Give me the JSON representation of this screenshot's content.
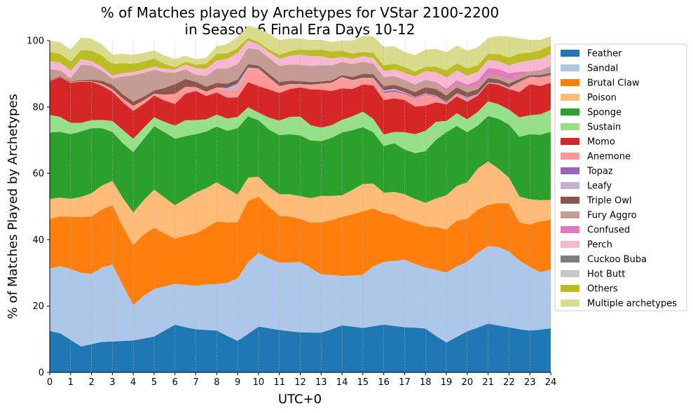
{
  "chart_data": {
    "type": "area",
    "stacked": true,
    "title": [
      "% of Matches played by Archetypes for VStar 2100-2200",
      "in Season 6 Final Era Days 10-12"
    ],
    "xlabel": "UTC+0",
    "ylabel": "% of Matches Played by Archetypes",
    "xlim": [
      0,
      24
    ],
    "ylim": [
      0,
      100
    ],
    "xticks": [
      "0",
      "1",
      "2",
      "3",
      "4",
      "5",
      "6",
      "7",
      "8",
      "9",
      "10",
      "11",
      "12",
      "13",
      "14",
      "15",
      "16",
      "17",
      "18",
      "19",
      "20",
      "21",
      "22",
      "23",
      "24"
    ],
    "yticks": [
      "0",
      "20",
      "40",
      "60",
      "80",
      "100"
    ],
    "grid": "vertical dotted",
    "legend_position": "right",
    "x": [
      0,
      0.5,
      1,
      1.5,
      2,
      2.5,
      3,
      3.5,
      4,
      4.5,
      5,
      5.5,
      6,
      6.5,
      7,
      7.5,
      8,
      8.5,
      9,
      9.5,
      10,
      10.5,
      11,
      11.5,
      12,
      12.5,
      13,
      13.5,
      14,
      14.5,
      15,
      15.5,
      16,
      16.5,
      17,
      17.5,
      18,
      18.5,
      19,
      19.5,
      20,
      20.5,
      21,
      21.5,
      22,
      22.5,
      23,
      23.5,
      24
    ],
    "series": [
      {
        "name": "Feather",
        "color": "#1f77b4",
        "values": [
          12.5,
          11.8,
          9.8,
          7.8,
          8.5,
          9.2,
          9.3,
          9.5,
          9.6,
          10.2,
          10.8,
          12.6,
          14.4,
          13.6,
          13,
          12.8,
          12.6,
          11,
          9.5,
          11.6,
          13.8,
          13.3,
          12.8,
          12.4,
          12.1,
          12,
          12,
          13,
          14.2,
          13.8,
          13.4,
          13.9,
          14.4,
          14,
          13.6,
          13.5,
          13.2,
          11,
          9,
          10.7,
          12.4,
          13.5,
          14.7,
          14.1,
          13.6,
          13,
          12.6,
          12.9,
          13.3
        ]
      },
      {
        "name": "Sandal",
        "color": "#aec7e8",
        "values": [
          18.8,
          20.2,
          21.4,
          22.2,
          21.2,
          22.4,
          23.2,
          16.8,
          10.7,
          12.9,
          14.3,
          13.3,
          12.3,
          12.8,
          13.1,
          13.7,
          14,
          16,
          18.8,
          21.6,
          22.2,
          21,
          20.3,
          20.7,
          21.2,
          19.5,
          17.5,
          16.4,
          14.9,
          15.4,
          16,
          18.1,
          18.9,
          19.6,
          20.3,
          19.2,
          18.4,
          19.9,
          21.1,
          21.2,
          20.9,
          22.5,
          23.4,
          23.6,
          22.9,
          20.7,
          19.2,
          17.3,
          17.7
        ]
      },
      {
        "name": "Brutal Claw",
        "color": "#ff7f0e",
        "values": [
          15,
          15,
          15.8,
          16.8,
          17.3,
          17.5,
          17.9,
          17.7,
          18.1,
          18.5,
          18.5,
          16,
          13.6,
          14.8,
          15.8,
          17.1,
          18.9,
          18.2,
          17,
          18.4,
          17,
          15.6,
          14.1,
          13.9,
          13,
          13.6,
          15.7,
          16.5,
          17.8,
          18.4,
          19.2,
          17.4,
          14.8,
          13.9,
          12,
          12.5,
          12.4,
          12.9,
          13,
          13.8,
          13,
          13,
          12.4,
          13.3,
          14.4,
          11.5,
          12.8,
          15.3,
          15
        ]
      },
      {
        "name": "Poison",
        "color": "#ffbb78",
        "values": [
          6,
          5.7,
          5.3,
          6.1,
          7,
          7.2,
          7.3,
          8.6,
          9.8,
          10.3,
          11.5,
          10.8,
          10.1,
          11.1,
          12.3,
          11.9,
          11.8,
          10.2,
          8.3,
          7.1,
          6,
          6,
          6.5,
          6.7,
          6.8,
          7.4,
          8,
          7.3,
          6.5,
          7.4,
          8.2,
          7.5,
          6.1,
          6.9,
          7.8,
          7.1,
          7.1,
          8.6,
          10.3,
          10.5,
          11,
          12.4,
          13.1,
          10.4,
          7.8,
          7.8,
          7.6,
          6.4,
          6
        ]
      },
      {
        "name": "Sponge",
        "color": "#2ca02c",
        "values": [
          20,
          19.8,
          19.5,
          19.7,
          19.6,
          17.3,
          14.8,
          16.5,
          18.2,
          18.4,
          19.1,
          19.7,
          20,
          18.9,
          17.6,
          17.1,
          16.8,
          17.4,
          20,
          18.5,
          17,
          17.3,
          17.8,
          18.1,
          18.3,
          17.4,
          16.5,
          17.5,
          18.9,
          18,
          17.1,
          15.5,
          14,
          14.7,
          13.5,
          13.8,
          15.6,
          17.7,
          19,
          18.1,
          15.1,
          13,
          13.7,
          15,
          16,
          18,
          19.6,
          19.7,
          20.5
        ]
      },
      {
        "name": "Sustain",
        "color": "#98df8a",
        "values": [
          5.3,
          4.5,
          3.4,
          2.6,
          2.4,
          2.5,
          3.3,
          4,
          4,
          3.4,
          2.7,
          3.1,
          4,
          4.8,
          4.2,
          3.7,
          3.6,
          3.7,
          3.4,
          2.7,
          2.3,
          3.6,
          4.4,
          5.2,
          5.7,
          4.6,
          4.1,
          3.8,
          3.8,
          4.2,
          4.7,
          4,
          3.5,
          3.4,
          5.2,
          5.7,
          6.1,
          5.4,
          3.4,
          3.8,
          3.9,
          4.1,
          4.4,
          4.4,
          4.5,
          5.9,
          5.7,
          6.2,
          6.6
        ]
      },
      {
        "name": "Momo",
        "color": "#d62728",
        "values": [
          10.2,
          12,
          12.1,
          12.4,
          11.6,
          10.3,
          8.8,
          8.3,
          8.4,
          7.2,
          6.5,
          6.4,
          6.5,
          8,
          8.8,
          7,
          6.7,
          6.3,
          5.9,
          7.6,
          8,
          8.5,
          8.3,
          8.4,
          8.8,
          10.8,
          11.4,
          10.3,
          9.5,
          8.2,
          8.2,
          10.1,
          10.4,
          10.1,
          9.7,
          8.3,
          7.6,
          5.9,
          5,
          5.1,
          5.3,
          4.9,
          5.4,
          5.9,
          6.2,
          7.6,
          9.4,
          8.5,
          8.2
        ]
      },
      {
        "name": "Anemone",
        "color": "#ff9896",
        "values": [
          0.1,
          0.1,
          0.2,
          0.2,
          0.1,
          0.6,
          0.8,
          1.1,
          1.5,
          1.1,
          0.6,
          1.8,
          3,
          2.1,
          1.2,
          1.3,
          1.5,
          1.9,
          2.6,
          3.7,
          5.1,
          3.5,
          2,
          1.4,
          0.9,
          1.3,
          1.7,
          2.4,
          3.2,
          2.5,
          1.8,
          1.9,
          2.1,
          2,
          1.8,
          2.5,
          3.3,
          1.6,
          0.3,
          0.6,
          0.9,
          0.3,
          0.1,
          0.2,
          0.3,
          2.9,
          2,
          2.5,
          2.1
        ]
      },
      {
        "name": "Topaz",
        "color": "#9467bd",
        "values": [
          0,
          0,
          0,
          0,
          0,
          0,
          0,
          0,
          0,
          0,
          0,
          0,
          0,
          0,
          0,
          0,
          0,
          0,
          0,
          0,
          0,
          0,
          0,
          0,
          0,
          0,
          0,
          0,
          0,
          0,
          0,
          0,
          0.4,
          0.5,
          0.3,
          0.2,
          0.2,
          0.2,
          0.2,
          0.2,
          0.2,
          0.1,
          0.1,
          0.1,
          0.1,
          0.1,
          0.1,
          0.1,
          0.1
        ]
      },
      {
        "name": "Leafy",
        "color": "#c5b0d5",
        "values": [
          0,
          0,
          0,
          0,
          0,
          0,
          0,
          0,
          0,
          0,
          0,
          0,
          0,
          0,
          0,
          0,
          0,
          1,
          1.6,
          0.7,
          0.2,
          0.1,
          0.1,
          0.1,
          0.1,
          0.1,
          0.1,
          0.1,
          0.2,
          0.2,
          0.2,
          0.3,
          0.4,
          0.4,
          0.3,
          0.2,
          0.2,
          0.2,
          0.2,
          0.2,
          0.2,
          0.1,
          0.1,
          0.1,
          0.1,
          0.1,
          0.1,
          0.1,
          0.1
        ]
      },
      {
        "name": "Triple Owl",
        "color": "#8c564b",
        "values": [
          0.2,
          0.2,
          0.2,
          0.3,
          0.5,
          0.9,
          1.3,
          1.3,
          1.3,
          1.1,
          1,
          2,
          3,
          2.3,
          1.6,
          1.5,
          1.4,
          1.3,
          1.2,
          1,
          0.9,
          1.1,
          1.2,
          1,
          0.9,
          0.8,
          0.7,
          0.7,
          0.6,
          0.9,
          1.2,
          1.2,
          1.2,
          1.2,
          1.2,
          1.5,
          1.9,
          2,
          2,
          1.7,
          1.5,
          1.4,
          1.3,
          1.2,
          1.1,
          0.8,
          0.5,
          0.6,
          0.7
        ]
      },
      {
        "name": "Fury Aggro",
        "color": "#c49c94",
        "values": [
          3.3,
          1.7,
          1,
          4.6,
          4.3,
          3,
          1.8,
          5.4,
          7.9,
          7.2,
          6.2,
          4.8,
          3.4,
          2.9,
          2.1,
          3.2,
          4.3,
          4.6,
          4.6,
          4.8,
          4.8,
          4.8,
          4.9,
          4.9,
          4.9,
          4.9,
          4.9,
          4.5,
          4,
          3.9,
          3.6,
          3.2,
          2.8,
          2.6,
          2.4,
          2.3,
          2.2,
          1.7,
          1.2,
          1.3,
          1.4,
          1.3,
          1.1,
          1.2,
          1.3,
          1.2,
          0.9,
          1.3,
          1.9
        ]
      },
      {
        "name": "Confused",
        "color": "#e377c2",
        "values": [
          0,
          0,
          0,
          0,
          0,
          0,
          0,
          0,
          0,
          0,
          0,
          0,
          0,
          0,
          0,
          0,
          0,
          0,
          0,
          0,
          0,
          0,
          0,
          0,
          0,
          0,
          0,
          0,
          0,
          0,
          0,
          0,
          0,
          0,
          0,
          0,
          0,
          0.4,
          0.8,
          0.8,
          0.9,
          1.3,
          1.9,
          1.9,
          1.9,
          1,
          0.2,
          0.2,
          0.2
        ]
      },
      {
        "name": "Perch",
        "color": "#f7b6d2",
        "values": [
          2.4,
          2.4,
          2.2,
          1.7,
          1.3,
          1.2,
          1,
          1,
          1,
          1,
          1,
          1,
          1,
          1.5,
          2,
          2.2,
          2.4,
          2.9,
          3.4,
          2.3,
          1.6,
          1.8,
          2.1,
          2.6,
          3.1,
          2.9,
          2.7,
          2.1,
          1.5,
          1.6,
          1.7,
          1.7,
          1.8,
          2,
          2.2,
          2.4,
          2.6,
          3,
          3.4,
          3,
          2.7,
          2.6,
          2.5,
          2.4,
          2.3,
          2.9,
          3.3,
          3.4,
          3.5
        ]
      },
      {
        "name": "Cuckoo Buba",
        "color": "#7f7f7f",
        "values": [
          0,
          0,
          0,
          0,
          0,
          0,
          0,
          0,
          0,
          0,
          0,
          0,
          0,
          0,
          0,
          0,
          0,
          0,
          0,
          0,
          0,
          0,
          0,
          0,
          0,
          0,
          0,
          0,
          0,
          0,
          0,
          0,
          0,
          0,
          0,
          0,
          0,
          0,
          0,
          0,
          0,
          0,
          0,
          0,
          0,
          0,
          0,
          0,
          0
        ]
      },
      {
        "name": "Hot Butt",
        "color": "#c7c7c7",
        "values": [
          0,
          0,
          0,
          0,
          0,
          0,
          0,
          0,
          0,
          0,
          0,
          0,
          0,
          0,
          0,
          0,
          0,
          0,
          0,
          0,
          0,
          0,
          0,
          0,
          0,
          0,
          0,
          0,
          0,
          0,
          0,
          0,
          0,
          0,
          0,
          0,
          0,
          0,
          0,
          0,
          0,
          0,
          0,
          0,
          0,
          0,
          0,
          0,
          0
        ]
      },
      {
        "name": "Others",
        "color": "#bcbd22",
        "values": [
          2.8,
          2.6,
          2.8,
          2.7,
          3.2,
          3.4,
          3.5,
          3,
          2.5,
          2.4,
          2.4,
          1.5,
          0.7,
          0.8,
          1.1,
          1.5,
          2,
          1.7,
          1.4,
          0.9,
          0.6,
          0.8,
          1.2,
          1.4,
          1.5,
          1.8,
          2,
          2.1,
          1.9,
          1.6,
          1.3,
          1.5,
          1.7,
          1.8,
          1.7,
          1.5,
          1.3,
          1.7,
          2.1,
          2.2,
          2.2,
          2.1,
          1.8,
          2.1,
          2.4,
          2.6,
          2.4,
          2.6,
          2.7
        ]
      },
      {
        "name": "Multiple archetypes",
        "color": "#dbdb8d",
        "values": [
          3.4,
          3.5,
          3.6,
          3.8,
          3.6,
          3.3,
          2.8,
          2.8,
          2.7,
          2.6,
          2.5,
          2.5,
          2.5,
          1.8,
          1.6,
          1.9,
          2.3,
          2.8,
          3.4,
          3.6,
          4.1,
          4.7,
          4.5,
          3.8,
          3.3,
          3.1,
          2.9,
          2.9,
          3.1,
          3.9,
          4.7,
          5,
          5.6,
          5.2,
          4.6,
          4.9,
          5.2,
          5.3,
          5.5,
          5.3,
          5.4,
          5.4,
          4.8,
          5.5,
          6.3,
          4.6,
          3.8,
          3.1,
          2.7
        ]
      }
    ]
  }
}
